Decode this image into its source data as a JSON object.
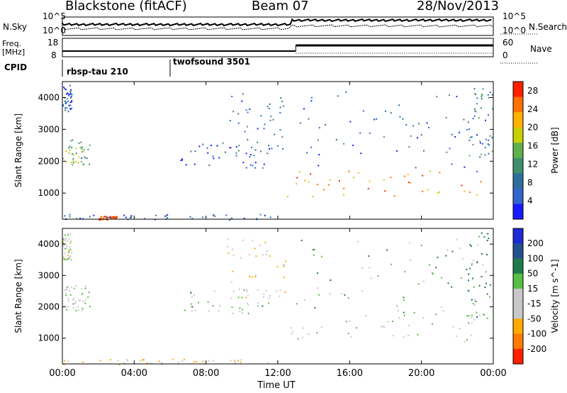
{
  "header": {
    "title": "Blackstone (fitACF)",
    "beam": "Beam 07",
    "date": "28/Nov/2013"
  },
  "sky_panel": {
    "left_label": "N.Sky",
    "right_label": "N.Search",
    "left_ticks": [
      "10^5",
      "10^0"
    ],
    "right_ticks": [
      "10^5",
      "10^0"
    ]
  },
  "freq_panel": {
    "left_label_1": "Freq.",
    "left_label_2": "[MHz]",
    "left_ticks": [
      "18",
      "8"
    ],
    "right_label": "Nave",
    "right_ticks": [
      "60",
      "0"
    ]
  },
  "cpid": {
    "label": "CPID",
    "programs": [
      {
        "name": "rbsp-tau 210",
        "start_hour": 0
      },
      {
        "name": "twofsound 3501",
        "start_hour": 6
      }
    ]
  },
  "colors": {
    "power_scale": [
      "#1a1aff",
      "#3366cc",
      "#2e6e9e",
      "#3f8f6f",
      "#5fb04a",
      "#c8d000",
      "#ffb000",
      "#ff7000",
      "#ff2000"
    ],
    "velocity_scale": [
      "#1c2bd6",
      "#25508f",
      "#1f7a4a",
      "#55c043",
      "#c8c8c8",
      "#c8c8c8",
      "#ffaa00",
      "#ff7a00",
      "#ff2000"
    ]
  },
  "chart_data": [
    {
      "type": "heatmap",
      "title": "",
      "xlabel": "",
      "ylabel": "Slant Range [km]",
      "x_ticks": [
        "00:00",
        "04:00",
        "08:00",
        "12:00",
        "16:00",
        "20:00",
        "00:00"
      ],
      "xlim": [
        0,
        24
      ],
      "ylim": [
        180,
        4500
      ],
      "y_ticks": [
        1000,
        2000,
        3000,
        4000
      ],
      "colorbar": {
        "label": "Power [dB]",
        "ticks": [
          4,
          8,
          12,
          16,
          20,
          24,
          28
        ],
        "range": [
          0,
          30
        ]
      },
      "scatter_regions": [
        {
          "x": [
            0.0,
            0.5
          ],
          "y": [
            3500,
            4400
          ],
          "value": 6
        },
        {
          "x": [
            0.0,
            1.5
          ],
          "y": [
            1900,
            2700
          ],
          "value": 14
        },
        {
          "x": [
            2.0,
            3.0
          ],
          "y": [
            180,
            300
          ],
          "value": 26
        },
        {
          "x": [
            0.0,
            12.0
          ],
          "y": [
            180,
            350
          ],
          "value": 6
        },
        {
          "x": [
            6.5,
            11.5
          ],
          "y": [
            1800,
            2600
          ],
          "value": 5
        },
        {
          "x": [
            9.0,
            12.5
          ],
          "y": [
            2300,
            4200
          ],
          "value": 7
        },
        {
          "x": [
            12.5,
            24.0
          ],
          "y": [
            900,
            1800
          ],
          "value": 24
        },
        {
          "x": [
            13.0,
            24.0
          ],
          "y": [
            1800,
            4200
          ],
          "value": 6
        },
        {
          "x": [
            22.5,
            24.0
          ],
          "y": [
            1500,
            4400
          ],
          "value": 10
        }
      ]
    },
    {
      "type": "heatmap",
      "title": "",
      "xlabel": "Time UT",
      "ylabel": "Slant Range [km]",
      "x_ticks": [
        "00:00",
        "04:00",
        "08:00",
        "12:00",
        "16:00",
        "20:00",
        "00:00"
      ],
      "xlim": [
        0,
        24
      ],
      "ylim": [
        180,
        4500
      ],
      "y_ticks": [
        1000,
        2000,
        3000,
        4000
      ],
      "colorbar": {
        "label": "Velocity [m s^-1]",
        "ticks": [
          200,
          100,
          50,
          15,
          -15,
          -50,
          -100,
          -200
        ],
        "range": [
          -250,
          250
        ]
      },
      "scatter_regions": [
        {
          "x": [
            0.0,
            0.5
          ],
          "y": [
            3500,
            4400
          ],
          "value": -15
        },
        {
          "x": [
            0.0,
            1.5
          ],
          "y": [
            1900,
            2700
          ],
          "value": 0
        },
        {
          "x": [
            0.0,
            12.0
          ],
          "y": [
            180,
            350
          ],
          "value": -60
        },
        {
          "x": [
            6.5,
            11.5
          ],
          "y": [
            1800,
            2600
          ],
          "value": 20
        },
        {
          "x": [
            9.0,
            12.5
          ],
          "y": [
            2300,
            4200
          ],
          "value": -50
        },
        {
          "x": [
            12.5,
            24.0
          ],
          "y": [
            900,
            1800
          ],
          "value": 0
        },
        {
          "x": [
            13.0,
            24.0
          ],
          "y": [
            1800,
            4200
          ],
          "value": 60
        },
        {
          "x": [
            22.5,
            24.0
          ],
          "y": [
            1500,
            4400
          ],
          "value": 80
        }
      ]
    }
  ]
}
